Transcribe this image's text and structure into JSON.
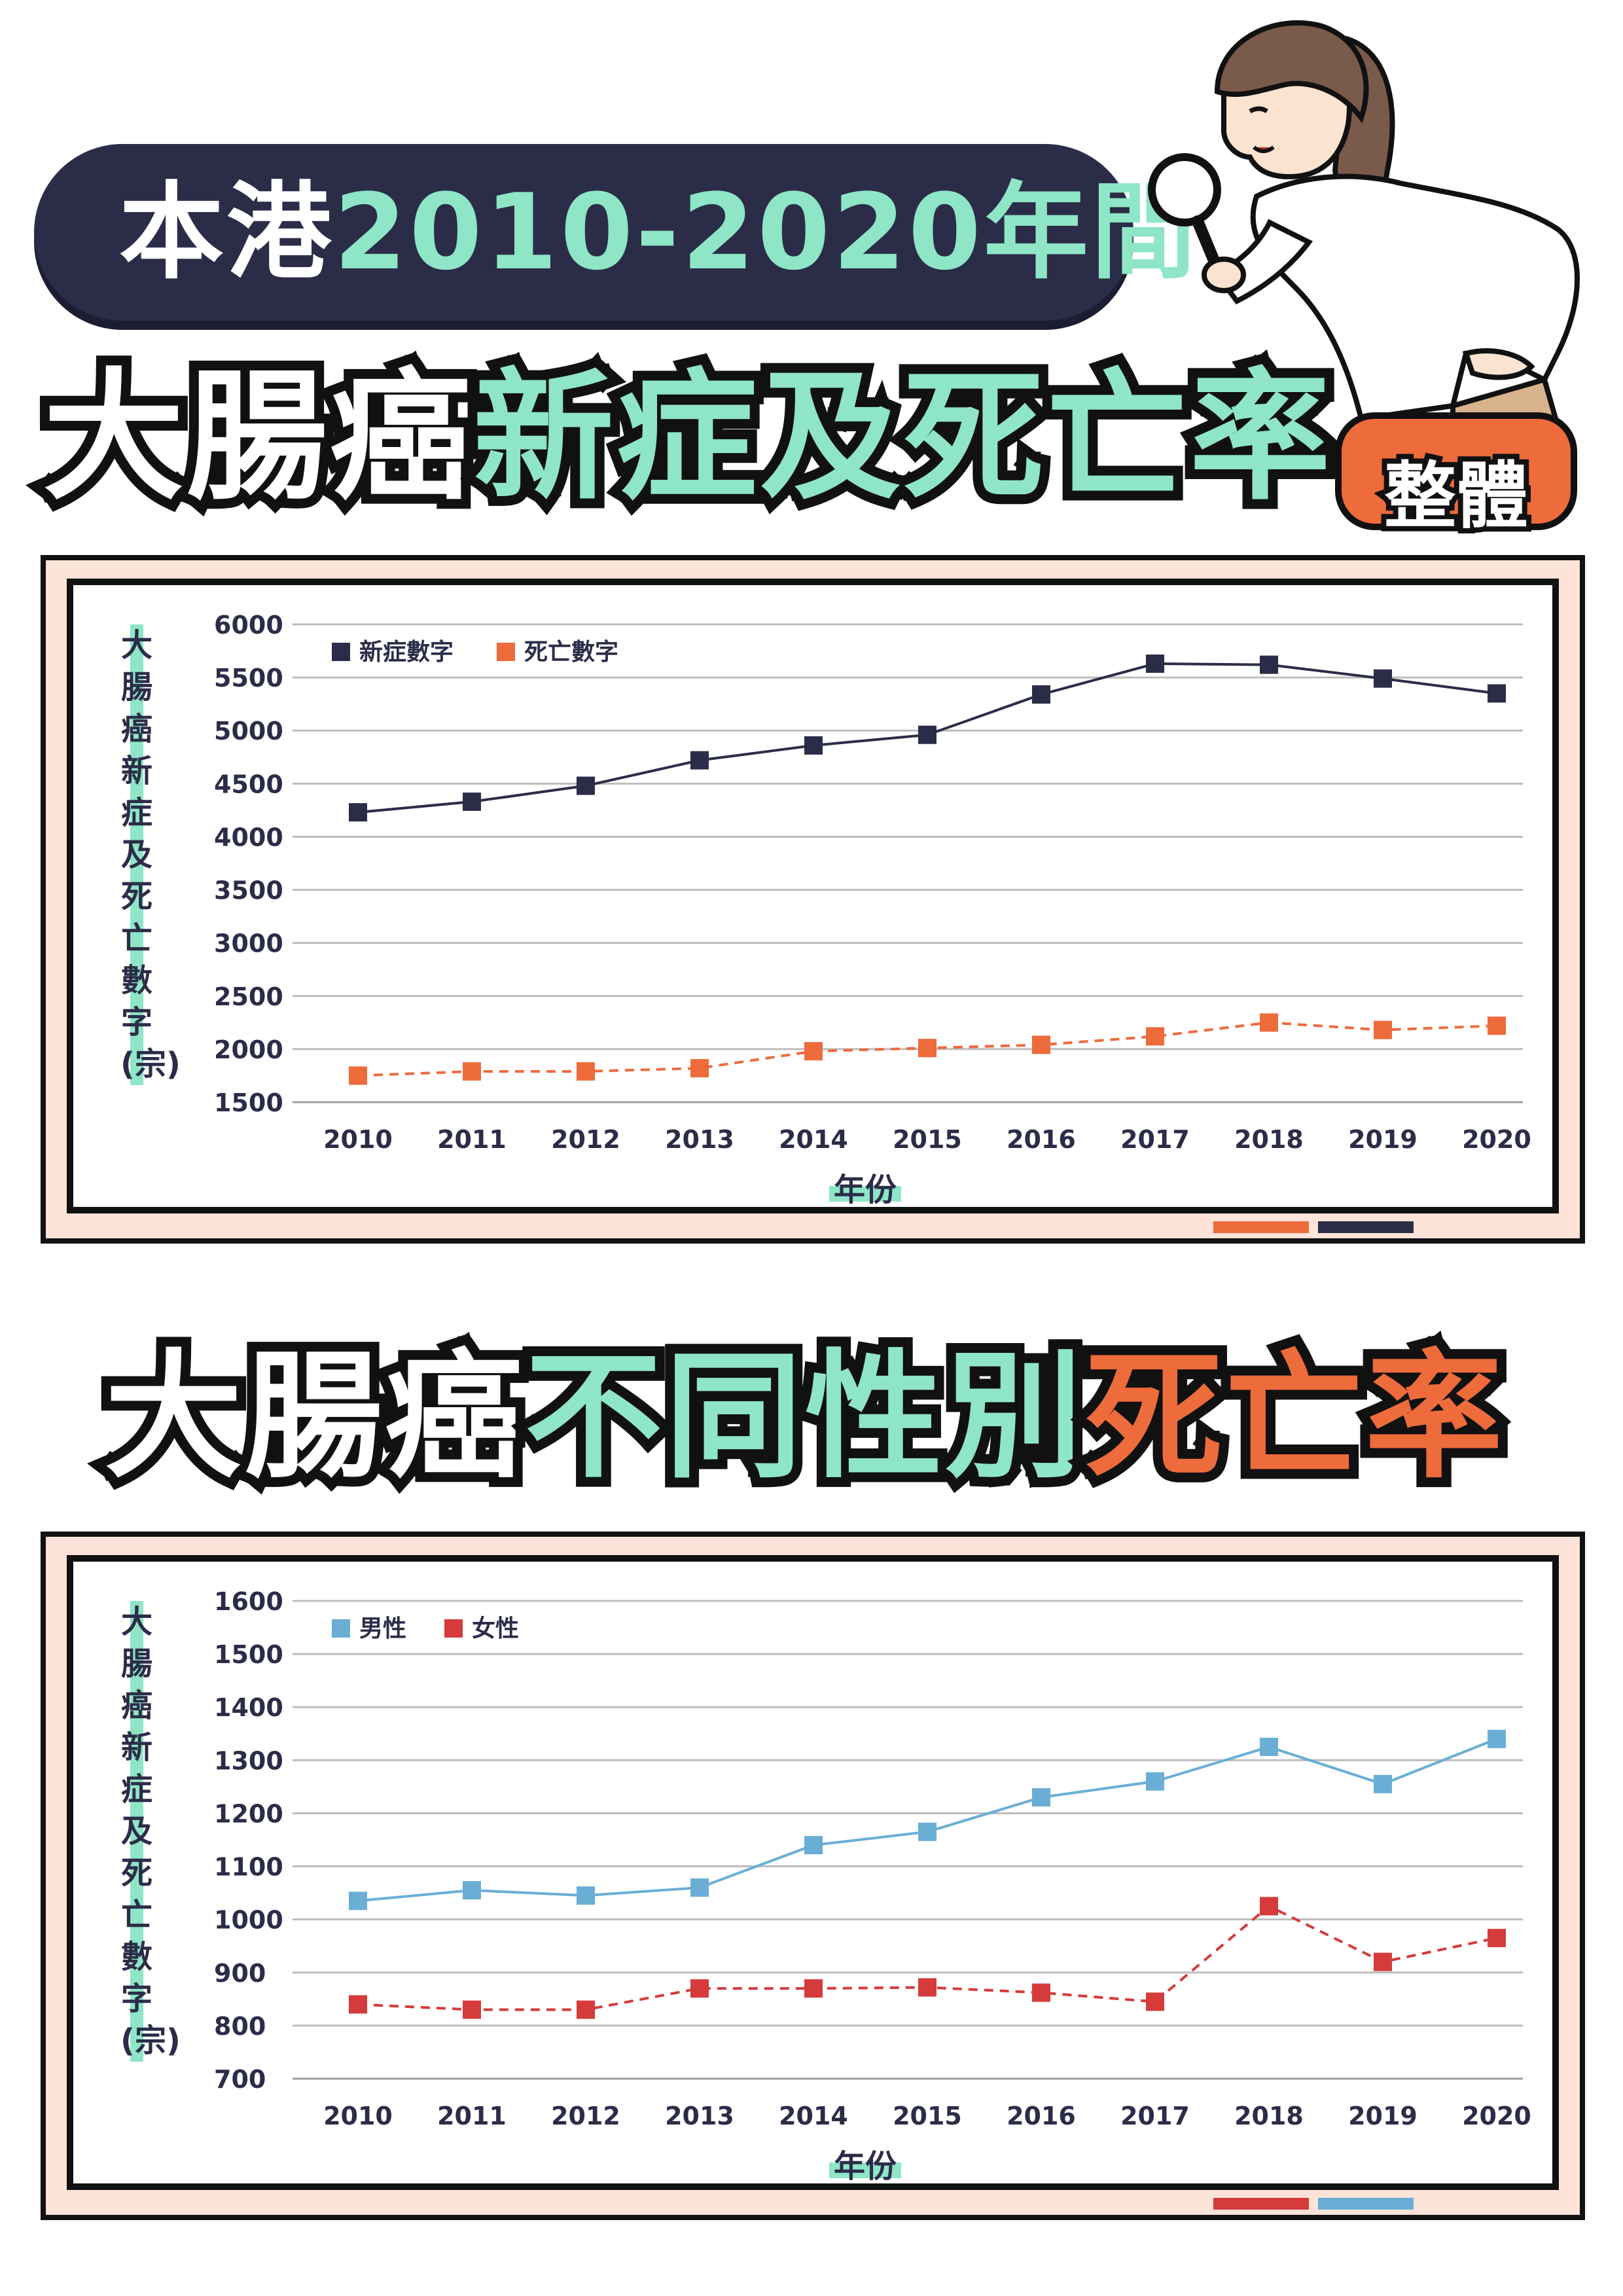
{
  "header": {
    "pill_prefix": "本港",
    "pill_highlight": "2010-2020年間"
  },
  "section1": {
    "title_a": "大腸癌",
    "title_b": "新症及死亡率",
    "badge": "整體"
  },
  "section2": {
    "title_a": "大腸癌",
    "title_b": "不同性別",
    "title_c": "死亡率"
  },
  "colors": {
    "navy": "#2b2d48",
    "mint": "#8ee6c6",
    "orange": "#ee6b3b",
    "blue": "#6aaed6",
    "red": "#d63b3b"
  },
  "chart_data": [
    {
      "type": "line",
      "title": "",
      "xlabel": "年份",
      "ylabel": "大腸癌新症及死亡數字(宗)",
      "x": [
        "2010",
        "2011",
        "2012",
        "2013",
        "2014",
        "2015",
        "2016",
        "2017",
        "2018",
        "2019",
        "2020"
      ],
      "ylim": [
        1500,
        6000
      ],
      "yticks": [
        "6000",
        "5500",
        "5000",
        "4500",
        "4000",
        "3500",
        "3000",
        "2500",
        "2000",
        "1500"
      ],
      "grid": true,
      "legend": "top-left",
      "series": [
        {
          "name": "新症數字",
          "color": "#2b2d48",
          "dashed": false,
          "values": [
            4230,
            4330,
            4480,
            4720,
            4860,
            4960,
            5340,
            5630,
            5620,
            5490,
            5350
          ]
        },
        {
          "name": "死亡數字",
          "color": "#ee6b3b",
          "dashed": true,
          "values": [
            1750,
            1790,
            1790,
            1820,
            1980,
            2010,
            2040,
            2120,
            2250,
            2180,
            2220
          ]
        }
      ]
    },
    {
      "type": "line",
      "title": "",
      "xlabel": "年份",
      "ylabel": "大腸癌新症及死亡數字(宗)",
      "x": [
        "2010",
        "2011",
        "2012",
        "2013",
        "2014",
        "2015",
        "2016",
        "2017",
        "2018",
        "2019",
        "2020"
      ],
      "ylim": [
        700,
        1600
      ],
      "yticks": [
        "1600",
        "1500",
        "1400",
        "1300",
        "1200",
        "1100",
        "1000",
        "900",
        "800",
        "700"
      ],
      "grid": true,
      "legend": "top-left",
      "series": [
        {
          "name": "男性",
          "color": "#6aaed6",
          "dashed": false,
          "values": [
            1035,
            1055,
            1045,
            1060,
            1140,
            1165,
            1230,
            1260,
            1325,
            1255,
            1340
          ]
        },
        {
          "name": "女性",
          "color": "#d63b3b",
          "dashed": true,
          "values": [
            840,
            830,
            830,
            870,
            870,
            872,
            862,
            845,
            1025,
            920,
            965
          ]
        }
      ]
    }
  ]
}
